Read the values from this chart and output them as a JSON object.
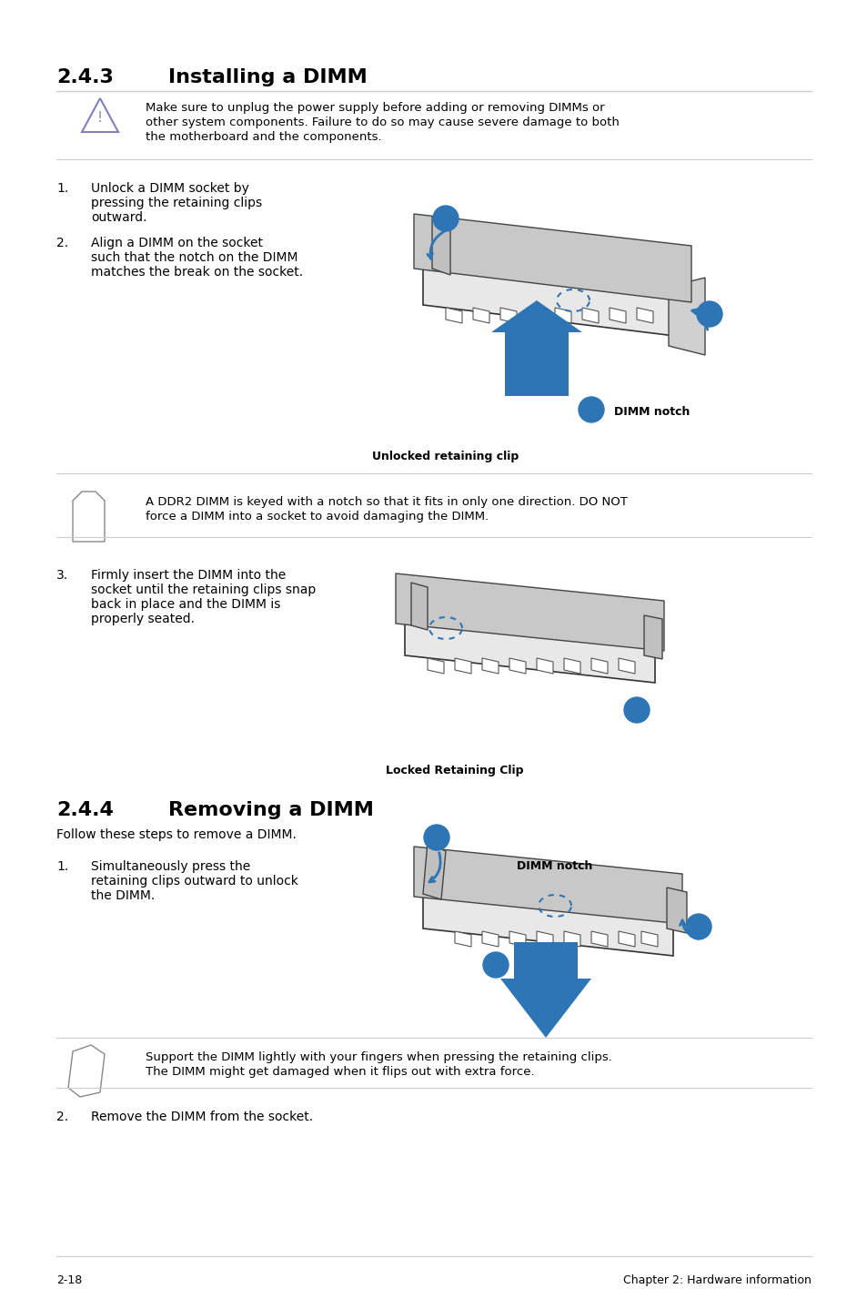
{
  "title_section1_num": "2.4.3",
  "title_section1": "Installing a DIMM",
  "title_section2_num": "2.4.4",
  "title_section2": "Removing a DIMM",
  "warning_text": "Make sure to unplug the power supply before adding or removing DIMMs or\nother system components. Failure to do so may cause severe damage to both\nthe motherboard and the components.",
  "step1_text": "1.\tUnlock a DIMM socket by\n\tpressing the retaining clips\n\toutward.",
  "step2_text": "2.\tAlign a DIMM on the socket\n\tsuch that the notch on the DIMM\n\tmatches the break on the socket.",
  "unlocked_clip_label": "Unlocked retaining clip",
  "note1_text": "A DDR2 DIMM is keyed with a notch so that it fits in only one direction. DO NOT\nforce a DIMM into a socket to avoid damaging the DIMM.",
  "step3_text": "3.\tFirmly insert the DIMM into the\n\tsocket until the retaining clips snap\n\tback in place and the DIMM is\n\tproperly seated.",
  "locked_clip_label": "Locked Retaining Clip",
  "section2_follow": "Follow these steps to remove a DIMM.",
  "remove_step1_text": "1.\tSimultaneously press the\n\tretaining clips outward to unlock\n\tthe DIMM.",
  "dimm_notch_label": "DIMM notch",
  "note2_text": "Support the DIMM lightly with your fingers when pressing the retaining clips.\nThe DIMM might get damaged when it flips out with extra force.",
  "remove_step2_text": "2.\tRemove the DIMM from the socket.",
  "footer_left": "2-18",
  "footer_right": "Chapter 2: Hardware information",
  "bg_color": "#ffffff",
  "text_color": "#000000",
  "blue_color": "#2E75B6",
  "teal_color": "#1B7B8A",
  "header_number_color": "#000000",
  "line_color": "#cccccc"
}
